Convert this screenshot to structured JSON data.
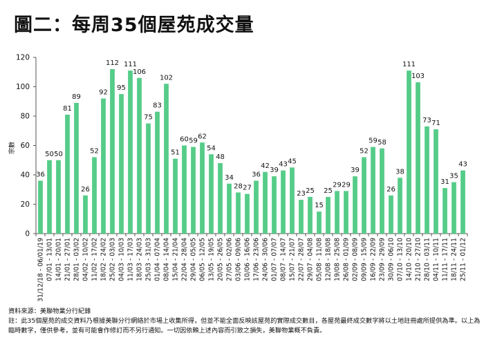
{
  "title": "圖二：每周35個屋苑成交量",
  "notes": {
    "source": "資料來源：美聯物業分行紀錄",
    "note": "註：此35個屋苑的成交資料乃根據美聯分行網絡於市場上收集所得，但並不能全面反映該屋苑的實際成交數目，各屋苑最終成交數字將以土地註冊處所提供為準。以上為臨時數字，僅供參考，並有可能會作修訂而不另行通知。一切因依賴上述內容而引致之損失，美聯物業概不負責。"
  },
  "chart_data": {
    "type": "bar",
    "ylabel": "宗數",
    "ylim": [
      0,
      120
    ],
    "yticks": [
      0,
      20,
      40,
      60,
      80,
      100,
      120
    ],
    "bar_color": "#55cc88",
    "categories": [
      "31/12/18 - 06/01/19",
      "07/01 - 13/01",
      "14/01 - 20/01",
      "21/01 - 27/01",
      "28/01 - 03/02",
      "04/02 - 10/02",
      "11/02 - 17/02",
      "18/02 - 24/02",
      "25/02 - 03/03",
      "04/03 - 10/03",
      "11/03 - 17/03",
      "18/03 - 24/03",
      "25/03 - 31/03",
      "01/04 - 07/04",
      "08/04 - 14/04",
      "15/04 - 21/04",
      "22/04 - 28/04",
      "29/04 - 05/05",
      "06/05 - 12/05",
      "13/05 - 19/05",
      "20/05 - 26/05",
      "27/05 - 02/06",
      "03/06 - 09/06",
      "10/06 - 16/06",
      "17/06 - 23/06",
      "24/06 - 30/06",
      "01/07 - 07/07",
      "08/07 - 14/07",
      "15/07 - 21/07",
      "22/07 - 28/07",
      "29/07 - 04/08",
      "05/08 - 11/08",
      "12/08 - 18/08",
      "19/08 - 25/08",
      "26/08 - 01/09",
      "02/09 - 08/09",
      "09/09 - 15/09",
      "16/09 - 22/09",
      "23/09 - 29/09",
      "30/09 - 06/10",
      "07/10 - 13/10",
      "14/10 - 20/10",
      "21/10 - 27/10",
      "28/10 - 03/11",
      "04/11 - 10/11",
      "11/11 - 17/11",
      "18/11 - 24/11",
      "25/11 - 01/12"
    ],
    "values": [
      36,
      50,
      50,
      81,
      89,
      26,
      52,
      92,
      112,
      95,
      111,
      106,
      75,
      83,
      102,
      51,
      60,
      59,
      62,
      54,
      48,
      34,
      28,
      27,
      36,
      42,
      39,
      43,
      45,
      23,
      25,
      15,
      25,
      29,
      29,
      39,
      52,
      59,
      58,
      26,
      38,
      111,
      103,
      73,
      71,
      31,
      35,
      43
    ]
  }
}
